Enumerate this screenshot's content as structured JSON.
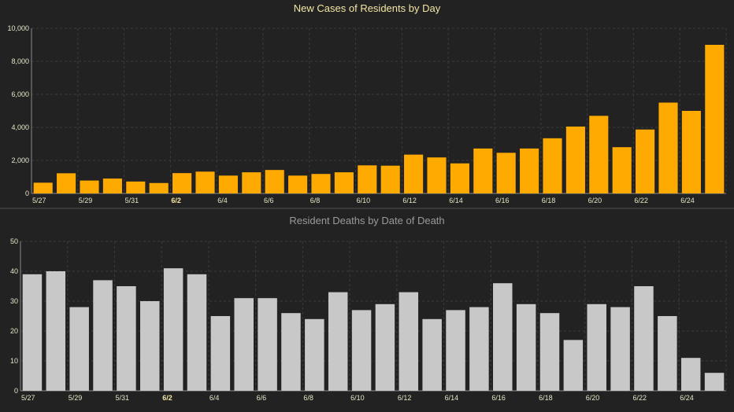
{
  "charts": {
    "top": {
      "bar_color": "#ffaa00",
      "grid_color": "#3c3c3c",
      "axis_color": "#8a8a8a"
    },
    "bottom": {
      "bar_color": "#c8c8c8",
      "grid_color": "#3c3c3c",
      "axis_color": "#8a8a8a"
    }
  },
  "chart_data": [
    {
      "type": "bar",
      "title": "New Cases of Residents by Day",
      "xlabel": "",
      "ylabel": "",
      "ylim": [
        0,
        10000
      ],
      "yticks": [
        "0",
        "2,000",
        "4,000",
        "6,000",
        "8,000",
        "10,000"
      ],
      "ytick_values": [
        0,
        2000,
        4000,
        6000,
        8000,
        10000
      ],
      "grid": true,
      "categories": [
        "5/27",
        "5/28",
        "5/29",
        "5/30",
        "5/31",
        "6/1",
        "6/2",
        "6/3",
        "6/4",
        "6/5",
        "6/6",
        "6/7",
        "6/8",
        "6/9",
        "6/10",
        "6/11",
        "6/12",
        "6/13",
        "6/14",
        "6/15",
        "6/16",
        "6/17",
        "6/18",
        "6/19",
        "6/20",
        "6/21",
        "6/22",
        "6/23",
        "6/24",
        "6/25"
      ],
      "values": [
        650,
        1220,
        780,
        900,
        720,
        630,
        1230,
        1320,
        1080,
        1280,
        1420,
        1080,
        1180,
        1280,
        1700,
        1680,
        2350,
        2180,
        1820,
        2720,
        2460,
        2720,
        3340,
        4050,
        4700,
        2800,
        3870,
        5500,
        5000,
        9000
      ],
      "xtick_labels": [
        "5/27",
        "5/29",
        "5/31",
        "6/2",
        "6/4",
        "6/6",
        "6/8",
        "6/10",
        "6/12",
        "6/14",
        "6/16",
        "6/18",
        "6/20",
        "6/22",
        "6/24"
      ],
      "bold_labels": [
        "6/2"
      ]
    },
    {
      "type": "bar",
      "title": "Resident Deaths by Date of Death",
      "xlabel": "",
      "ylabel": "",
      "ylim": [
        0,
        50
      ],
      "yticks": [
        "0",
        "10",
        "20",
        "30",
        "40",
        "50"
      ],
      "ytick_values": [
        0,
        10,
        20,
        30,
        40,
        50
      ],
      "grid": true,
      "categories": [
        "5/27",
        "5/28",
        "5/29",
        "5/30",
        "5/31",
        "6/1",
        "6/2",
        "6/3",
        "6/4",
        "6/5",
        "6/6",
        "6/7",
        "6/8",
        "6/9",
        "6/10",
        "6/11",
        "6/12",
        "6/13",
        "6/14",
        "6/15",
        "6/16",
        "6/17",
        "6/18",
        "6/19",
        "6/20",
        "6/21",
        "6/22",
        "6/23",
        "6/24",
        "6/25"
      ],
      "values": [
        39,
        40,
        28,
        37,
        35,
        30,
        41,
        39,
        25,
        31,
        31,
        26,
        24,
        33,
        27,
        29,
        33,
        24,
        27,
        28,
        36,
        29,
        26,
        17,
        29,
        28,
        35,
        25,
        11,
        6
      ],
      "xtick_labels": [
        "5/27",
        "5/29",
        "5/31",
        "6/2",
        "6/4",
        "6/6",
        "6/8",
        "6/10",
        "6/12",
        "6/14",
        "6/16",
        "6/18",
        "6/20",
        "6/22",
        "6/24"
      ],
      "bold_labels": [
        "6/2"
      ]
    }
  ]
}
